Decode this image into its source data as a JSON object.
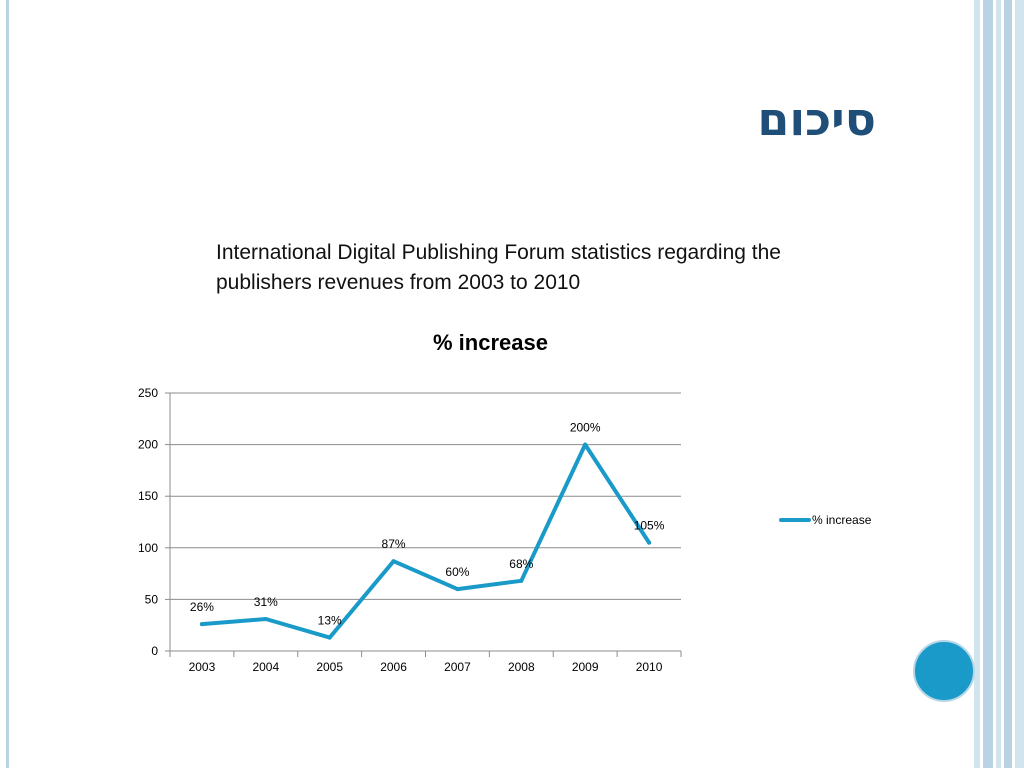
{
  "slide": {
    "title": "סיכום",
    "subtitle": "International Digital Publishing Forum statistics regarding the publishers revenues from 2003 to 2010"
  },
  "colors": {
    "series": "#1a9ac8",
    "title": "#1f4e79",
    "accent_circle": "#1a9ac8"
  },
  "chart_data": {
    "type": "line",
    "title": "% increase",
    "xlabel": "",
    "ylabel": "",
    "categories": [
      "2003",
      "2004",
      "2005",
      "2006",
      "2007",
      "2008",
      "2009",
      "2010"
    ],
    "series": [
      {
        "name": "% increase",
        "values": [
          26,
          31,
          13,
          87,
          60,
          68,
          200,
          105
        ],
        "labels": [
          "26%",
          "31%",
          "13%",
          "87%",
          "60%",
          "68%",
          "200%",
          "105%"
        ]
      }
    ],
    "ylim": [
      0,
      250
    ],
    "yticks": [
      0,
      50,
      100,
      150,
      200,
      250
    ],
    "grid": true,
    "legend": "right"
  }
}
